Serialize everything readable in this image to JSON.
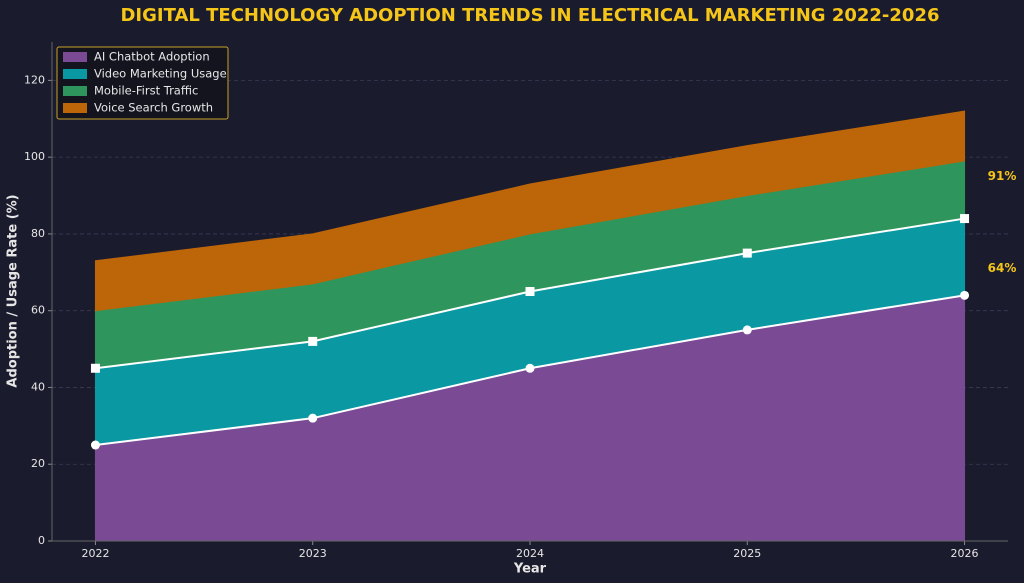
{
  "chart_data": {
    "type": "stacked-area",
    "title": "DIGITAL TECHNOLOGY ADOPTION TRENDS IN ELECTRICAL MARKETING 2022-2026",
    "x_label": "Year",
    "y_label": "Adoption / Usage Rate (%)",
    "x": [
      2022,
      2023,
      2024,
      2025,
      2026
    ],
    "series": [
      {
        "name": "AI Chatbot Adoption",
        "color": "#7a4a94",
        "values": [
          25,
          32,
          45,
          55,
          64
        ]
      },
      {
        "name": "Video Marketing Usage",
        "color": "#0a98a3",
        "values": [
          20,
          20,
          20,
          20,
          20
        ]
      },
      {
        "name": "Mobile-First Traffic",
        "color": "#2e955c",
        "values": [
          15,
          15,
          15,
          15,
          15
        ]
      },
      {
        "name": "Voice Search Growth",
        "color": "#bd6609",
        "values": [
          13,
          13,
          13,
          13,
          13
        ]
      }
    ],
    "annotations": [
      "91%",
      "64%"
    ],
    "xlim": [
      2021.8,
      2026.2
    ],
    "xticks": [
      2022,
      2023,
      2024,
      2025,
      2026
    ],
    "ylim": [
      0,
      130
    ],
    "yticks": [
      0,
      20,
      40,
      60,
      80,
      100,
      120
    ],
    "grid": true,
    "legend": "upper-left"
  }
}
